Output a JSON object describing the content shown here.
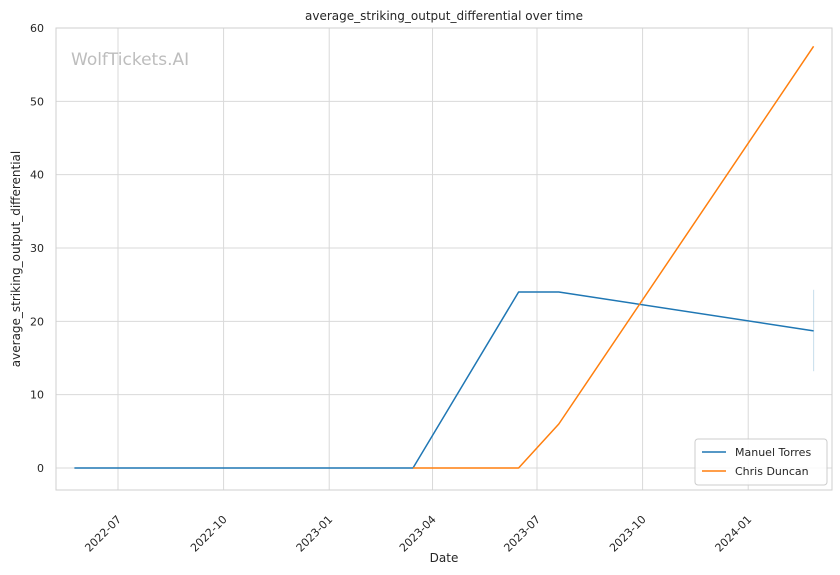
{
  "chart_data": {
    "type": "line",
    "title": "average_striking_output_differential over time",
    "xlabel": "Date",
    "ylabel": "average_striking_output_differential",
    "watermark": "WolfTickets.AI",
    "x_axis": "date",
    "xlim": [
      "2022-05-08",
      "2024-03-14"
    ],
    "ylim": [
      -3,
      60
    ],
    "x_ticks": [
      "2022-07",
      "2022-10",
      "2023-01",
      "2023-04",
      "2023-07",
      "2023-10",
      "2024-01"
    ],
    "x_tick_dates": [
      "2022-07-01",
      "2022-10-01",
      "2023-01-01",
      "2023-04-01",
      "2023-07-01",
      "2023-10-01",
      "2024-01-01"
    ],
    "y_ticks": [
      0,
      10,
      20,
      30,
      40,
      50,
      60
    ],
    "grid": true,
    "legend_position": "bottom-right",
    "series": [
      {
        "name": "Manuel Torres",
        "color": "#1f77b4",
        "points": [
          {
            "x": "2022-05-24",
            "y": 0
          },
          {
            "x": "2023-03-15",
            "y": 0
          },
          {
            "x": "2023-06-15",
            "y": 24
          },
          {
            "x": "2023-07-20",
            "y": 24
          },
          {
            "x": "2024-02-27",
            "y": 18.7
          }
        ],
        "error_band": {
          "x": "2024-02-27",
          "low": 13.2,
          "high": 24.3
        }
      },
      {
        "name": "Chris Duncan",
        "color": "#ff7f0e",
        "points": [
          {
            "x": "2023-03-15",
            "y": 0
          },
          {
            "x": "2023-06-15",
            "y": 0
          },
          {
            "x": "2023-07-20",
            "y": 6
          },
          {
            "x": "2024-02-27",
            "y": 57.5
          }
        ]
      }
    ]
  }
}
